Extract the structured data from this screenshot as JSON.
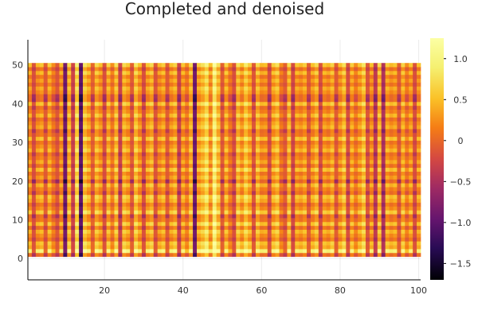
{
  "chart_data": {
    "type": "heatmap",
    "title": "Completed and denoised",
    "xlabel": "",
    "ylabel": "",
    "x_range": [
      1,
      100
    ],
    "y_range": [
      1,
      50
    ],
    "xlim": [
      0.5,
      100.5
    ],
    "ylim": [
      -5.5,
      56.5
    ],
    "x_ticks": [
      20,
      40,
      60,
      80,
      100
    ],
    "x_tick_labels": [
      "20",
      "40",
      "60",
      "80",
      "100"
    ],
    "y_ticks": [
      0,
      10,
      20,
      30,
      40,
      50
    ],
    "y_tick_labels": [
      "0",
      "10",
      "20",
      "30",
      "40",
      "50"
    ],
    "colorbar": {
      "min": -1.7,
      "max": 1.25,
      "ticks": [
        -1.5,
        -1.0,
        -0.5,
        0,
        0.5,
        1.0
      ],
      "tick_labels": [
        "−1.5",
        "−1.0",
        "−0.5",
        "0",
        "0.5",
        "1.0"
      ],
      "colormap": "inferno"
    },
    "grid": true,
    "legend": "colorbar-right",
    "column_profile": [
      0.1,
      -0.2,
      0.05,
      0.15,
      -0.1,
      0.2,
      0.0,
      -0.15,
      0.1,
      -0.9,
      0.3,
      -0.3,
      0.55,
      -1.0,
      0.4,
      0.2,
      -0.05,
      0.3,
      0.1,
      -0.2,
      0.25,
      0.0,
      0.35,
      -0.3,
      0.3,
      0.15,
      -0.1,
      0.4,
      0.1,
      -0.2,
      0.15,
      0.3,
      -0.15,
      0.05,
      0.2,
      -0.1,
      0.1,
      0.25,
      -0.3,
      0.15,
      0.0,
      0.3,
      -0.9,
      0.2,
      0.35,
      0.6,
      0.1,
      0.8,
      0.35,
      -0.1,
      0.25,
      0.0,
      -0.2,
      0.35,
      0.1,
      0.45,
      0.2,
      -0.15,
      0.3,
      0.05,
      0.1,
      -0.2,
      0.2,
      0.35,
      0.0,
      -0.1,
      0.3,
      -0.25,
      0.15,
      0.05,
      0.2,
      -0.1,
      0.1,
      0.3,
      -0.2,
      0.15,
      0.05,
      0.25,
      -0.1,
      0.1,
      0.35,
      -0.2,
      0.2,
      0.0,
      0.15,
      0.4,
      -0.15,
      0.1,
      -0.4,
      0.3,
      -0.5,
      0.2,
      0.05,
      0.15,
      -0.1,
      0.25,
      0.0,
      0.15,
      -0.2,
      0.1
    ],
    "row_profile": [
      -0.2,
      0.6,
      0.2,
      0.3,
      -0.1,
      0.1,
      0.25,
      -0.15,
      0.3,
      0.0,
      -0.25,
      0.35,
      0.1,
      -0.1,
      0.2,
      0.3,
      -0.2,
      0.05,
      0.25,
      -0.35,
      0.15,
      0.0,
      0.3,
      -0.1,
      0.2,
      0.05,
      -0.15,
      0.25,
      0.1,
      -0.05,
      0.3,
      0.0,
      -0.2,
      0.2,
      0.1,
      -0.1,
      0.25,
      0.05,
      -0.15,
      0.3,
      -0.3,
      -0.25,
      0.1,
      0.2,
      -0.05,
      0.15,
      0.0,
      0.25,
      -0.1,
      0.3
    ]
  }
}
